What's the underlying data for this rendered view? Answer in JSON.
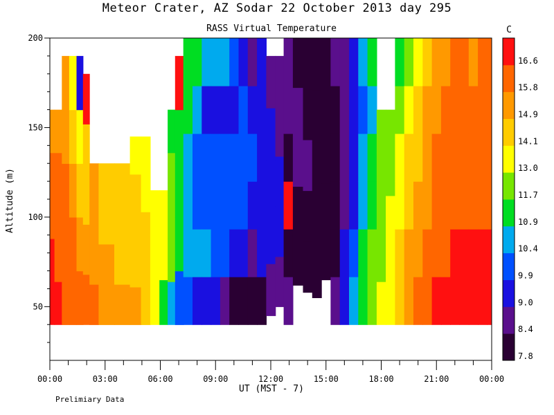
{
  "header": {
    "title": "Meteor Crater, AZ  Sodar  22 October 2013  day 295",
    "subtitle": "RASS Virtual Temperature"
  },
  "footer_note": "Prelimiary Data",
  "chart_data": {
    "type": "heatmap",
    "title": "Meteor Crater, AZ  Sodar  22 October 2013  day 295",
    "subtitle": "RASS Virtual Temperature",
    "xlabel": "UT  (MST - 7)",
    "ylabel": "Altitude (m)",
    "xlim_hours": [
      0,
      24
    ],
    "ylim": [
      20,
      200
    ],
    "x_ticks": [
      "00:00",
      "03:00",
      "06:00",
      "09:00",
      "12:00",
      "15:00",
      "18:00",
      "21:00",
      "00:00"
    ],
    "y_ticks": [
      50,
      100,
      150,
      200
    ],
    "colorbar": {
      "unit": "C",
      "levels": [
        7.8,
        8.4,
        9.0,
        9.9,
        10.4,
        10.9,
        11.7,
        13.0,
        14.1,
        14.9,
        15.8,
        16.6
      ],
      "colors": [
        "#2a0033",
        "#5a0f8c",
        "#1a10e0",
        "#0050ff",
        "#00aaee",
        "#00dd22",
        "#77e600",
        "#ffff00",
        "#ffcc00",
        "#ff9900",
        "#ff6600",
        "#ff1010"
      ]
    },
    "columns": [
      {
        "t": 0.0,
        "bottom": 40,
        "top": 160,
        "v": [
          16.6,
          16.6,
          16.5,
          16.0,
          15.5
        ]
      },
      {
        "t": 0.5,
        "bottom": 40,
        "top": 160,
        "v": [
          16.6,
          16.5,
          16.2,
          15.8,
          15.5
        ]
      },
      {
        "t": 0.8,
        "bottom": 40,
        "top": 190,
        "v": [
          16.5,
          16.2,
          15.8,
          15.5,
          15.0
        ]
      },
      {
        "t": 1.3,
        "bottom": 40,
        "top": 190,
        "v": [
          16.3,
          15.8,
          15.5,
          14.8,
          13.5
        ]
      },
      {
        "t": 1.6,
        "bottom": 40,
        "top": 190,
        "v": [
          15.9,
          15.5,
          14.8,
          13.5,
          9.5
        ]
      },
      {
        "t": 2.0,
        "bottom": 40,
        "top": 180,
        "v": [
          15.8,
          15.2,
          14.5,
          14.2,
          16.6
        ]
      },
      {
        "t": 2.3,
        "bottom": 40,
        "top": 130,
        "v": [
          15.8,
          15.3,
          15.0,
          14.9
        ]
      },
      {
        "t": 3.0,
        "bottom": 40,
        "top": 130,
        "v": [
          15.5,
          15.0,
          14.8,
          14.5
        ]
      },
      {
        "t": 4.0,
        "bottom": 40,
        "top": 130,
        "v": [
          15.2,
          14.8,
          14.6,
          14.2
        ]
      },
      {
        "t": 4.7,
        "bottom": 40,
        "top": 145,
        "v": [
          15.0,
          14.7,
          14.5,
          14.1,
          13.6
        ]
      },
      {
        "t": 5.2,
        "bottom": 40,
        "top": 145,
        "v": [
          14.5,
          14.6,
          14.2,
          13.5,
          13.0
        ]
      },
      {
        "t": 5.7,
        "bottom": 40,
        "top": 115,
        "v": [
          13.0,
          14.0,
          14.0
        ]
      },
      {
        "t": 6.2,
        "bottom": 40,
        "top": 115,
        "v": [
          11.0,
          13.5,
          13.3
        ]
      },
      {
        "t": 6.6,
        "bottom": 40,
        "top": 160,
        "v": [
          10.4,
          12.5,
          12.0,
          12.2,
          11.5
        ]
      },
      {
        "t": 7.0,
        "bottom": 40,
        "top": 190,
        "v": [
          10.2,
          11.5,
          11.0,
          11.5,
          16.6
        ]
      },
      {
        "t": 7.5,
        "bottom": 40,
        "top": 200,
        "v": [
          10.0,
          10.5,
          10.5,
          10.8,
          11.2,
          11.6
        ]
      },
      {
        "t": 8.0,
        "bottom": 40,
        "top": 200,
        "v": [
          9.8,
          10.4,
          10.3,
          10.2,
          10.6,
          11.0
        ]
      },
      {
        "t": 8.5,
        "bottom": 40,
        "top": 200,
        "v": [
          9.4,
          10.4,
          10.3,
          10.0,
          9.8,
          10.6
        ]
      },
      {
        "t": 9.0,
        "bottom": 40,
        "top": 200,
        "v": [
          9.0,
          10.3,
          10.2,
          9.9,
          9.6,
          10.8
        ]
      },
      {
        "t": 9.5,
        "bottom": 40,
        "top": 200,
        "v": [
          8.6,
          10.2,
          10.2,
          10.0,
          9.4,
          10.5
        ]
      },
      {
        "t": 10.0,
        "bottom": 40,
        "top": 200,
        "v": [
          8.2,
          9.8,
          10.1,
          10.0,
          9.6,
          10.2
        ]
      },
      {
        "t": 10.5,
        "bottom": 40,
        "top": 200,
        "v": [
          8.0,
          9.5,
          10.0,
          10.3,
          9.9,
          9.6
        ]
      },
      {
        "t": 11.0,
        "bottom": 40,
        "top": 200,
        "v": [
          7.9,
          8.8,
          9.8,
          10.0,
          9.2,
          8.6
        ]
      },
      {
        "t": 11.5,
        "bottom": 40,
        "top": 200,
        "v": [
          8.2,
          9.0,
          9.4,
          9.6,
          9.2,
          9.0
        ]
      },
      {
        "t": 12.0,
        "bottom": 45,
        "top": 190,
        "v": [
          8.4,
          9.0,
          9.3,
          9.1,
          8.9
        ]
      },
      {
        "t": 12.5,
        "bottom": 50,
        "top": 190,
        "v": [
          8.6,
          9.0,
          9.1,
          8.8,
          8.8
        ]
      },
      {
        "t": 12.9,
        "bottom": 40,
        "top": 200,
        "v": [
          8.4,
          8.3,
          16.6,
          8.2,
          8.5,
          8.6
        ]
      },
      {
        "t": 13.5,
        "bottom": 62,
        "top": 200,
        "v": [
          8.1,
          8.3,
          8.5,
          8.4,
          8.3
        ]
      },
      {
        "t": 14.0,
        "bottom": 58,
        "top": 200,
        "v": [
          8.0,
          8.2,
          8.4,
          8.3,
          8.1
        ]
      },
      {
        "t": 14.5,
        "bottom": 55,
        "top": 200,
        "v": [
          7.9,
          8.1,
          8.2,
          8.0,
          7.9
        ]
      },
      {
        "t": 15.0,
        "bottom": 65,
        "top": 200,
        "v": [
          7.9,
          8.0,
          8.1,
          8.0,
          7.8
        ]
      },
      {
        "t": 15.5,
        "bottom": 40,
        "top": 200,
        "v": [
          8.4,
          8.2,
          8.0,
          7.9,
          8.2,
          8.4
        ]
      },
      {
        "t": 16.0,
        "bottom": 40,
        "top": 200,
        "v": [
          9.5,
          9.0,
          8.8,
          8.5,
          8.6,
          8.8
        ]
      },
      {
        "t": 16.5,
        "bottom": 40,
        "top": 200,
        "v": [
          10.6,
          10.2,
          9.8,
          9.6,
          9.5,
          9.6
        ]
      },
      {
        "t": 17.0,
        "bottom": 40,
        "top": 200,
        "v": [
          11.2,
          11.0,
          10.8,
          10.5,
          10.3,
          10.6
        ]
      },
      {
        "t": 17.5,
        "bottom": 40,
        "top": 200,
        "v": [
          12.0,
          11.8,
          11.5,
          11.2,
          10.8,
          11.0
        ]
      },
      {
        "t": 18.0,
        "bottom": 40,
        "top": 160,
        "v": [
          13.2,
          12.8,
          12.5,
          12.0,
          11.7
        ]
      },
      {
        "t": 18.5,
        "bottom": 40,
        "top": 160,
        "v": [
          14.0,
          13.6,
          13.2,
          12.8,
          12.2
        ]
      },
      {
        "t": 19.0,
        "bottom": 40,
        "top": 200,
        "v": [
          14.6,
          14.2,
          13.8,
          13.4,
          12.8,
          11.5
        ]
      },
      {
        "t": 19.5,
        "bottom": 40,
        "top": 200,
        "v": [
          15.2,
          14.9,
          14.5,
          14.2,
          13.6,
          12.5
        ]
      },
      {
        "t": 20.0,
        "bottom": 40,
        "top": 200,
        "v": [
          15.8,
          15.4,
          15.0,
          14.8,
          14.5,
          14.0
        ]
      },
      {
        "t": 20.5,
        "bottom": 40,
        "top": 200,
        "v": [
          16.2,
          15.9,
          15.6,
          15.3,
          15.0,
          14.7
        ]
      },
      {
        "t": 21.0,
        "bottom": 40,
        "top": 200,
        "v": [
          16.6,
          16.3,
          16.0,
          15.8,
          15.5,
          15.2
        ]
      },
      {
        "t": 21.5,
        "bottom": 40,
        "top": 200,
        "v": [
          16.7,
          16.5,
          16.3,
          16.0,
          15.8,
          15.5
        ]
      },
      {
        "t": 22.0,
        "bottom": 40,
        "top": 200,
        "v": [
          16.7,
          16.6,
          16.4,
          16.2,
          16.0,
          15.8
        ]
      },
      {
        "t": 22.5,
        "bottom": 40,
        "top": 200,
        "v": [
          16.7,
          16.6,
          16.5,
          16.3,
          16.1,
          15.9
        ]
      },
      {
        "t": 23.0,
        "bottom": 40,
        "top": 200,
        "v": [
          16.7,
          16.6,
          16.4,
          16.0,
          15.8,
          15.6
        ]
      },
      {
        "t": 23.5,
        "bottom": 40,
        "top": 200,
        "v": [
          16.8,
          16.7,
          16.5,
          16.2,
          16.0,
          15.8
        ]
      },
      {
        "t": 24.0,
        "bottom": 40,
        "top": 200,
        "v": [
          16.8,
          16.7,
          16.5,
          16.3,
          16.0,
          15.8
        ]
      }
    ]
  }
}
